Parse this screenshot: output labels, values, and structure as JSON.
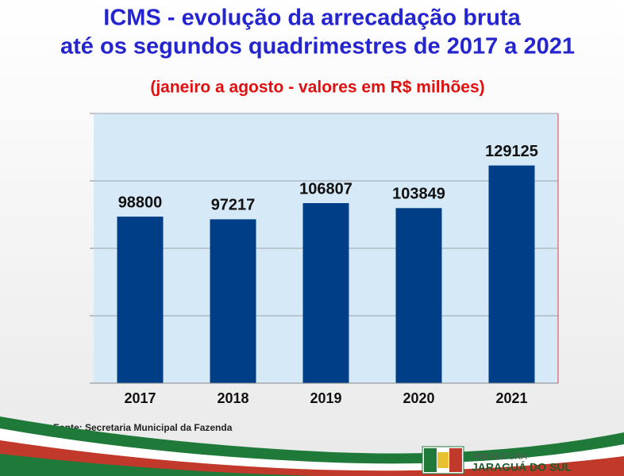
{
  "chart_data": {
    "type": "bar",
    "title": "ICMS - evolução da arrecadação bruta",
    "subtitle_line2": "até os segundos quadrimestres de 2017 a 2021",
    "subtitle": "(janeiro a agosto - valores em R$ milhões)",
    "categories": [
      "2017",
      "2018",
      "2019",
      "2020",
      "2021"
    ],
    "values": [
      98800,
      97217,
      106807,
      103849,
      129125
    ],
    "color": "#003f87",
    "ylim": [
      0,
      160000
    ],
    "yticks": [
      0,
      40000,
      80000,
      120000,
      160000
    ],
    "grid": true,
    "source": "Fonte: Secretaria Municipal da Fazenda"
  },
  "logo": {
    "line1": "PREFEITURA",
    "line2": "JARAGUÁ DO SUL"
  }
}
